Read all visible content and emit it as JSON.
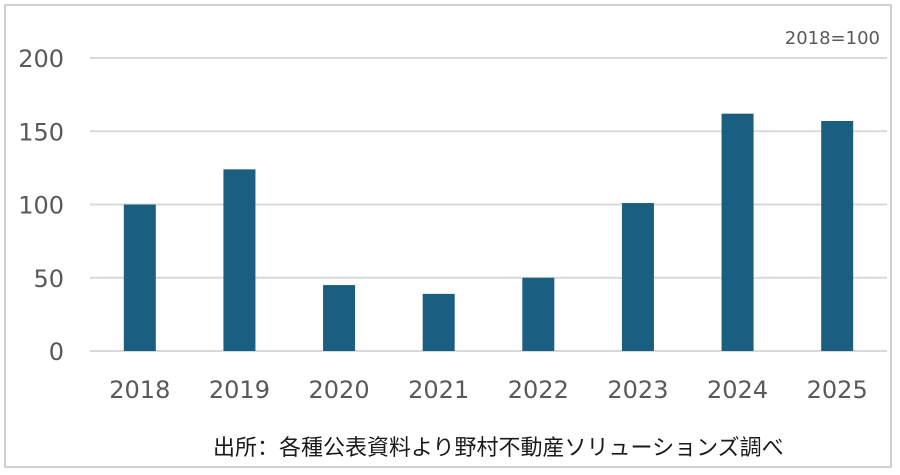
{
  "chart_data": {
    "type": "bar",
    "categories": [
      "2018",
      "2019",
      "2020",
      "2021",
      "2022",
      "2023",
      "2024",
      "2025"
    ],
    "values": [
      100,
      124,
      45,
      39,
      50,
      101,
      162,
      157
    ],
    "ylim": [
      0,
      200
    ],
    "yticks": [
      "0",
      "50",
      "100",
      "150",
      "200"
    ],
    "grid": true,
    "bar_color": "#1a5e82",
    "index_note": "2018=100",
    "source": "出所：各種公表資料より野村不動産ソリューションズ調べ"
  }
}
